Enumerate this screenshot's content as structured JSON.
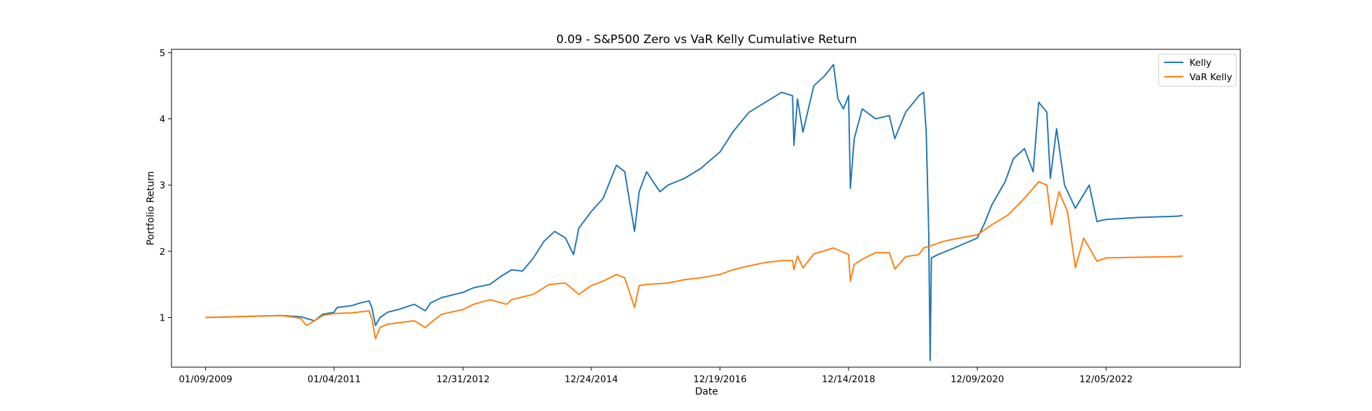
{
  "chart_data": {
    "type": "line",
    "title": "0.09 - S&P500 Zero vs VaR Kelly Cumulative Return",
    "xlabel": "Date",
    "ylabel": "Portfolio Return",
    "x_ticks": [
      "01/09/2009",
      "01/04/2011",
      "12/31/2012",
      "12/24/2014",
      "12/19/2016",
      "12/14/2018",
      "12/09/2020",
      "12/05/2022"
    ],
    "y_ticks": [
      1,
      2,
      3,
      4,
      5
    ],
    "xlim": [
      "2008-07-01",
      "2024-12-31"
    ],
    "ylim": [
      0.25,
      5.05
    ],
    "grid": false,
    "legend_position": "top-right",
    "colors": {
      "Kelly": "#1f77b4",
      "VaR Kelly": "#ff7f0e"
    },
    "series": [
      {
        "name": "Kelly",
        "points": [
          [
            "2009-01-09",
            1.0
          ],
          [
            "2010-03-15",
            1.03
          ],
          [
            "2010-07-01",
            1.01
          ],
          [
            "2010-09-15",
            0.95
          ],
          [
            "2010-11-01",
            1.05
          ],
          [
            "2011-01-04",
            1.08
          ],
          [
            "2011-01-20",
            1.15
          ],
          [
            "2011-04-15",
            1.18
          ],
          [
            "2011-06-01",
            1.22
          ],
          [
            "2011-07-20",
            1.25
          ],
          [
            "2011-08-05",
            1.15
          ],
          [
            "2011-08-25",
            0.88
          ],
          [
            "2011-09-20",
            1.0
          ],
          [
            "2011-11-01",
            1.08
          ],
          [
            "2012-01-01",
            1.12
          ],
          [
            "2012-04-01",
            1.2
          ],
          [
            "2012-06-01",
            1.1
          ],
          [
            "2012-07-01",
            1.22
          ],
          [
            "2012-09-01",
            1.3
          ],
          [
            "2012-12-31",
            1.38
          ],
          [
            "2013-03-01",
            1.45
          ],
          [
            "2013-06-01",
            1.5
          ],
          [
            "2013-08-01",
            1.62
          ],
          [
            "2013-10-01",
            1.72
          ],
          [
            "2013-12-01",
            1.7
          ],
          [
            "2014-02-01",
            1.9
          ],
          [
            "2014-04-01",
            2.15
          ],
          [
            "2014-06-01",
            2.3
          ],
          [
            "2014-08-01",
            2.2
          ],
          [
            "2014-09-15",
            1.95
          ],
          [
            "2014-10-15",
            2.35
          ],
          [
            "2014-12-24",
            2.6
          ],
          [
            "2015-03-01",
            2.8
          ],
          [
            "2015-05-15",
            3.3
          ],
          [
            "2015-07-01",
            3.2
          ],
          [
            "2015-08-25",
            2.3
          ],
          [
            "2015-09-20",
            2.9
          ],
          [
            "2015-11-01",
            3.2
          ],
          [
            "2016-01-15",
            2.9
          ],
          [
            "2016-03-01",
            3.0
          ],
          [
            "2016-06-01",
            3.1
          ],
          [
            "2016-09-01",
            3.25
          ],
          [
            "2016-12-19",
            3.5
          ],
          [
            "2017-03-01",
            3.8
          ],
          [
            "2017-06-01",
            4.1
          ],
          [
            "2017-09-01",
            4.25
          ],
          [
            "2017-12-01",
            4.4
          ],
          [
            "2018-02-01",
            4.35
          ],
          [
            "2018-02-09",
            3.6
          ],
          [
            "2018-03-01",
            4.3
          ],
          [
            "2018-04-01",
            3.8
          ],
          [
            "2018-06-01",
            4.5
          ],
          [
            "2018-08-01",
            4.65
          ],
          [
            "2018-09-20",
            4.82
          ],
          [
            "2018-10-15",
            4.3
          ],
          [
            "2018-11-15",
            4.15
          ],
          [
            "2018-12-14",
            4.35
          ],
          [
            "2018-12-24",
            2.95
          ],
          [
            "2019-01-15",
            3.7
          ],
          [
            "2019-03-01",
            4.15
          ],
          [
            "2019-05-15",
            4.0
          ],
          [
            "2019-08-01",
            4.05
          ],
          [
            "2019-09-01",
            3.7
          ],
          [
            "2019-11-01",
            4.1
          ],
          [
            "2020-01-15",
            4.35
          ],
          [
            "2020-02-10",
            4.4
          ],
          [
            "2020-02-25",
            3.8
          ],
          [
            "2020-03-10",
            2.3
          ],
          [
            "2020-03-18",
            0.35
          ],
          [
            "2020-03-25",
            1.9
          ],
          [
            "2020-05-01",
            1.95
          ],
          [
            "2020-08-01",
            2.05
          ],
          [
            "2020-12-09",
            2.2
          ],
          [
            "2021-01-15",
            2.4
          ],
          [
            "2021-03-01",
            2.7
          ],
          [
            "2021-05-15",
            3.05
          ],
          [
            "2021-07-01",
            3.4
          ],
          [
            "2021-09-01",
            3.55
          ],
          [
            "2021-10-20",
            3.2
          ],
          [
            "2021-11-20",
            4.25
          ],
          [
            "2022-01-05",
            4.1
          ],
          [
            "2022-01-25",
            3.1
          ],
          [
            "2022-03-01",
            3.85
          ],
          [
            "2022-04-15",
            3.0
          ],
          [
            "2022-06-15",
            2.65
          ],
          [
            "2022-09-01",
            3.0
          ],
          [
            "2022-10-15",
            2.45
          ],
          [
            "2022-12-05",
            2.48
          ],
          [
            "2023-06-01",
            2.51
          ],
          [
            "2024-01-10",
            2.53
          ],
          [
            "2024-02-10",
            2.54
          ]
        ]
      },
      {
        "name": "VaR Kelly",
        "points": [
          [
            "2009-01-09",
            1.0
          ],
          [
            "2010-03-15",
            1.03
          ],
          [
            "2010-06-01",
            1.0
          ],
          [
            "2010-07-01",
            0.98
          ],
          [
            "2010-08-01",
            0.88
          ],
          [
            "2010-09-15",
            0.95
          ],
          [
            "2010-11-01",
            1.03
          ],
          [
            "2011-01-04",
            1.06
          ],
          [
            "2011-04-15",
            1.07
          ],
          [
            "2011-07-20",
            1.1
          ],
          [
            "2011-08-05",
            0.98
          ],
          [
            "2011-08-25",
            0.68
          ],
          [
            "2011-09-20",
            0.85
          ],
          [
            "2011-11-01",
            0.9
          ],
          [
            "2012-01-01",
            0.92
          ],
          [
            "2012-04-01",
            0.95
          ],
          [
            "2012-06-01",
            0.85
          ],
          [
            "2012-07-01",
            0.92
          ],
          [
            "2012-09-01",
            1.05
          ],
          [
            "2012-12-31",
            1.12
          ],
          [
            "2013-03-01",
            1.2
          ],
          [
            "2013-06-01",
            1.27
          ],
          [
            "2013-09-01",
            1.2
          ],
          [
            "2013-10-01",
            1.27
          ],
          [
            "2014-02-01",
            1.35
          ],
          [
            "2014-05-01",
            1.5
          ],
          [
            "2014-08-01",
            1.52
          ],
          [
            "2014-10-15",
            1.35
          ],
          [
            "2014-12-24",
            1.48
          ],
          [
            "2015-03-01",
            1.55
          ],
          [
            "2015-05-15",
            1.65
          ],
          [
            "2015-07-01",
            1.6
          ],
          [
            "2015-08-25",
            1.15
          ],
          [
            "2015-09-20",
            1.48
          ],
          [
            "2015-11-01",
            1.5
          ],
          [
            "2016-03-01",
            1.52
          ],
          [
            "2016-06-01",
            1.57
          ],
          [
            "2016-09-01",
            1.6
          ],
          [
            "2016-12-19",
            1.65
          ],
          [
            "2017-03-01",
            1.72
          ],
          [
            "2017-06-01",
            1.78
          ],
          [
            "2017-09-01",
            1.83
          ],
          [
            "2017-12-01",
            1.86
          ],
          [
            "2018-02-01",
            1.86
          ],
          [
            "2018-02-09",
            1.72
          ],
          [
            "2018-03-01",
            1.93
          ],
          [
            "2018-04-01",
            1.75
          ],
          [
            "2018-06-01",
            1.96
          ],
          [
            "2018-09-20",
            2.05
          ],
          [
            "2018-12-14",
            1.95
          ],
          [
            "2018-12-24",
            1.55
          ],
          [
            "2019-01-15",
            1.8
          ],
          [
            "2019-03-01",
            1.88
          ],
          [
            "2019-05-15",
            1.98
          ],
          [
            "2019-08-01",
            1.98
          ],
          [
            "2019-09-01",
            1.73
          ],
          [
            "2019-11-01",
            1.92
          ],
          [
            "2020-01-15",
            1.95
          ],
          [
            "2020-02-10",
            2.05
          ],
          [
            "2020-03-18",
            2.08
          ],
          [
            "2020-06-01",
            2.15
          ],
          [
            "2020-09-01",
            2.2
          ],
          [
            "2020-12-09",
            2.25
          ],
          [
            "2021-03-01",
            2.4
          ],
          [
            "2021-06-01",
            2.55
          ],
          [
            "2021-09-01",
            2.8
          ],
          [
            "2021-11-20",
            3.05
          ],
          [
            "2022-01-05",
            3.0
          ],
          [
            "2022-02-01",
            2.4
          ],
          [
            "2022-03-15",
            2.9
          ],
          [
            "2022-05-01",
            2.6
          ],
          [
            "2022-06-15",
            1.75
          ],
          [
            "2022-08-01",
            2.2
          ],
          [
            "2022-10-15",
            1.85
          ],
          [
            "2022-12-05",
            1.9
          ],
          [
            "2023-06-01",
            1.91
          ],
          [
            "2024-01-10",
            1.92
          ],
          [
            "2024-02-10",
            1.93
          ]
        ]
      }
    ]
  }
}
